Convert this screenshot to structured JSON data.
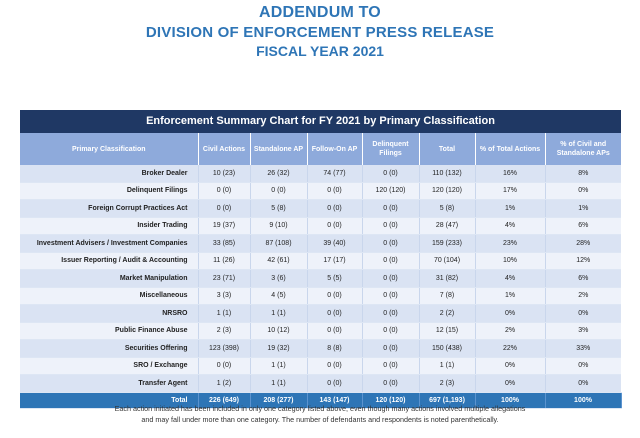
{
  "header": {
    "line1": "ADDENDUM TO",
    "line2": "DIVISION OF ENFORCEMENT PRESS RELEASE",
    "line3": "FISCAL YEAR 2021"
  },
  "table": {
    "title": "Enforcement Summary Chart for FY 2021 by Primary Classification",
    "columns": [
      "Primary Classification",
      "Civil Actions",
      "Standalone AP",
      "Follow-On AP",
      "Delinquent Filings",
      "Total",
      "% of Total Actions",
      "% of Civil and Standalone APs"
    ],
    "rows": [
      [
        "Broker Dealer",
        "10 (23)",
        "26 (32)",
        "74 (77)",
        "0 (0)",
        "110 (132)",
        "16%",
        "8%"
      ],
      [
        "Delinquent Filings",
        "0 (0)",
        "0 (0)",
        "0 (0)",
        "120 (120)",
        "120 (120)",
        "17%",
        "0%"
      ],
      [
        "Foreign Corrupt Practices Act",
        "0 (0)",
        "5 (8)",
        "0 (0)",
        "0 (0)",
        "5 (8)",
        "1%",
        "1%"
      ],
      [
        "Insider Trading",
        "19 (37)",
        "9 (10)",
        "0 (0)",
        "0 (0)",
        "28 (47)",
        "4%",
        "6%"
      ],
      [
        "Investment Advisers / Investment Companies",
        "33 (85)",
        "87 (108)",
        "39 (40)",
        "0 (0)",
        "159 (233)",
        "23%",
        "28%"
      ],
      [
        "Issuer Reporting / Audit & Accounting",
        "11 (26)",
        "42 (61)",
        "17 (17)",
        "0 (0)",
        "70 (104)",
        "10%",
        "12%"
      ],
      [
        "Market Manipulation",
        "23 (71)",
        "3 (6)",
        "5 (5)",
        "0 (0)",
        "31 (82)",
        "4%",
        "6%"
      ],
      [
        "Miscellaneous",
        "3 (3)",
        "4 (5)",
        "0 (0)",
        "0 (0)",
        "7 (8)",
        "1%",
        "2%"
      ],
      [
        "NRSRO",
        "1 (1)",
        "1 (1)",
        "0 (0)",
        "0 (0)",
        "2 (2)",
        "0%",
        "0%"
      ],
      [
        "Public Finance Abuse",
        "2 (3)",
        "10 (12)",
        "0 (0)",
        "0 (0)",
        "12 (15)",
        "2%",
        "3%"
      ],
      [
        "Securities Offering",
        "123 (398)",
        "19 (32)",
        "8 (8)",
        "0 (0)",
        "150 (438)",
        "22%",
        "33%"
      ],
      [
        "SRO / Exchange",
        "0 (0)",
        "1 (1)",
        "0 (0)",
        "0 (0)",
        "1 (1)",
        "0%",
        "0%"
      ],
      [
        "Transfer Agent",
        "1 (2)",
        "1 (1)",
        "0 (0)",
        "0 (0)",
        "2 (3)",
        "0%",
        "0%"
      ]
    ],
    "total": [
      "Total",
      "226 (649)",
      "208 (277)",
      "143 (147)",
      "120 (120)",
      "697 (1,193)",
      "100%",
      "100%"
    ]
  },
  "footnote": {
    "line1": "Each action initiated has been included in only one category listed above, even though many actions involved multiple allegations",
    "line2": "and may fall under more than one category. The number of defendants and respondents is noted parenthetically."
  }
}
